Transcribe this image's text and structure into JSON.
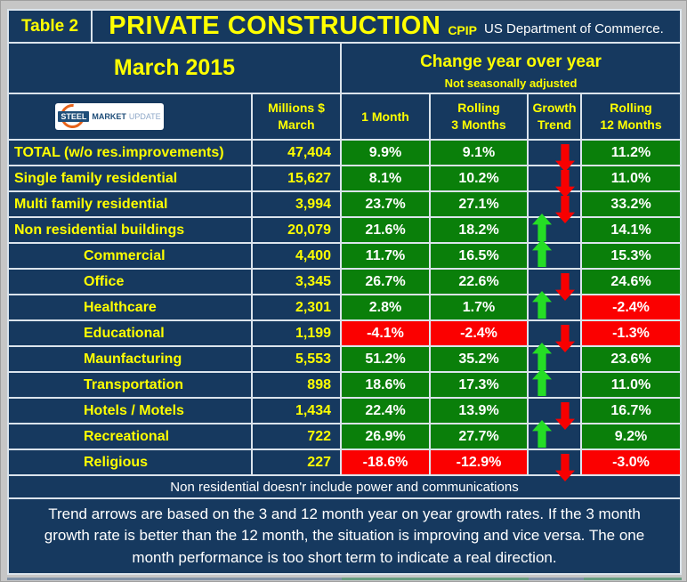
{
  "header": {
    "table_label": "Table 2",
    "title": "PRIVATE CONSTRUCTION",
    "title_suffix": "CPIP",
    "source": "US Department of Commerce.",
    "period": "March 2015",
    "change_title": "Change year over year",
    "change_subtitle": "Not seasonally adjusted"
  },
  "logo": {
    "part1": "STEEL",
    "part2": "MARKET",
    "part3": "UPDATE"
  },
  "columns": {
    "millions_1": "Millions $",
    "millions_2": "March",
    "one_month": "1 Month",
    "rolling3_1": "Rolling",
    "rolling3_2": "3 Months",
    "growth_1": "Growth",
    "growth_2": "Trend",
    "rolling12_1": "Rolling",
    "rolling12_2": "12 Months"
  },
  "colors": {
    "navy_background": "#16395f",
    "cell_green": "#0a7f0a",
    "cell_red": "#fb0000",
    "text_yellow": "#ffff00",
    "text_white": "#ffffff",
    "arrow_up_green": "#25dd25",
    "arrow_down_red": "#f80000",
    "gridline": "#dbe4ec"
  },
  "rows": [
    {
      "label": "TOTAL (w/o res.improvements)",
      "indent": 0,
      "millions": "47,404",
      "m1": "9.9%",
      "m3": "9.1%",
      "trend": "down",
      "m12": "11.2%"
    },
    {
      "label": "Single family residential",
      "indent": 0,
      "millions": "15,627",
      "m1": "8.1%",
      "m3": "10.2%",
      "trend": "down",
      "m12": "11.0%"
    },
    {
      "label": "Multi family residential",
      "indent": 0,
      "millions": "3,994",
      "m1": "23.7%",
      "m3": "27.1%",
      "trend": "down",
      "m12": "33.2%"
    },
    {
      "label": "Non residential buildings",
      "indent": 0,
      "millions": "20,079",
      "m1": "21.6%",
      "m3": "18.2%",
      "trend": "up",
      "m12": "14.1%"
    },
    {
      "label": "Commercial",
      "indent": 1,
      "millions": "4,400",
      "m1": "11.7%",
      "m3": "16.5%",
      "trend": "up",
      "m12": "15.3%"
    },
    {
      "label": "Office",
      "indent": 1,
      "millions": "3,345",
      "m1": "26.7%",
      "m3": "22.6%",
      "trend": "down",
      "m12": "24.6%"
    },
    {
      "label": "Healthcare",
      "indent": 1,
      "millions": "2,301",
      "m1": "2.8%",
      "m3": "1.7%",
      "trend": "up",
      "m12": "-2.4%"
    },
    {
      "label": "Educational",
      "indent": 1,
      "millions": "1,199",
      "m1": "-4.1%",
      "m3": "-2.4%",
      "trend": "down",
      "m12": "-1.3%"
    },
    {
      "label": "Maunfacturing",
      "indent": 1,
      "millions": "5,553",
      "m1": "51.2%",
      "m3": "35.2%",
      "trend": "up",
      "m12": "23.6%"
    },
    {
      "label": "Transportation",
      "indent": 1,
      "millions": "898",
      "m1": "18.6%",
      "m3": "17.3%",
      "trend": "up",
      "m12": "11.0%"
    },
    {
      "label": "Hotels / Motels",
      "indent": 1,
      "millions": "1,434",
      "m1": "22.4%",
      "m3": "13.9%",
      "trend": "down",
      "m12": "16.7%"
    },
    {
      "label": "Recreational",
      "indent": 1,
      "millions": "722",
      "m1": "26.9%",
      "m3": "27.7%",
      "trend": "up",
      "m12": "9.2%"
    },
    {
      "label": "Religious",
      "indent": 1,
      "millions": "227",
      "m1": "-18.6%",
      "m3": "-12.9%",
      "trend": "down",
      "m12": "-3.0%"
    }
  ],
  "notes": {
    "footnote": "Non residential doesn'r include power and communications",
    "trend": "Trend arrows are based on the 3 and 12 month year on year growth rates. If the 3 month growth rate is better than the 12 month, the situation is improving and vice versa. The one month performance is too short term to indicate a real direction."
  },
  "chart_data": {
    "type": "table",
    "title": "PRIVATE CONSTRUCTION (CPIP, US Department of Commerce) — March 2015, change year over year, not seasonally adjusted",
    "columns": [
      "Category",
      "Millions $ March",
      "1 Month %",
      "Rolling 3 Months %",
      "Growth Trend",
      "Rolling 12 Months %"
    ],
    "rows": [
      [
        "TOTAL (w/o res.improvements)",
        47404,
        9.9,
        9.1,
        "down",
        11.2
      ],
      [
        "Single family residential",
        15627,
        8.1,
        10.2,
        "down",
        11.0
      ],
      [
        "Multi family residential",
        3994,
        23.7,
        27.1,
        "down",
        33.2
      ],
      [
        "Non residential buildings",
        20079,
        21.6,
        18.2,
        "up",
        14.1
      ],
      [
        "Commercial",
        4400,
        11.7,
        16.5,
        "up",
        15.3
      ],
      [
        "Office",
        3345,
        26.7,
        22.6,
        "down",
        24.6
      ],
      [
        "Healthcare",
        2301,
        2.8,
        1.7,
        "up",
        -2.4
      ],
      [
        "Educational",
        1199,
        -4.1,
        -2.4,
        "down",
        -1.3
      ],
      [
        "Maunfacturing",
        5553,
        51.2,
        35.2,
        "up",
        23.6
      ],
      [
        "Transportation",
        898,
        18.6,
        17.3,
        "up",
        11.0
      ],
      [
        "Hotels / Motels",
        1434,
        22.4,
        13.9,
        "down",
        16.7
      ],
      [
        "Recreational",
        722,
        26.9,
        27.7,
        "up",
        9.2
      ],
      [
        "Religious",
        227,
        -18.6,
        -12.9,
        "down",
        -3.0
      ]
    ]
  }
}
